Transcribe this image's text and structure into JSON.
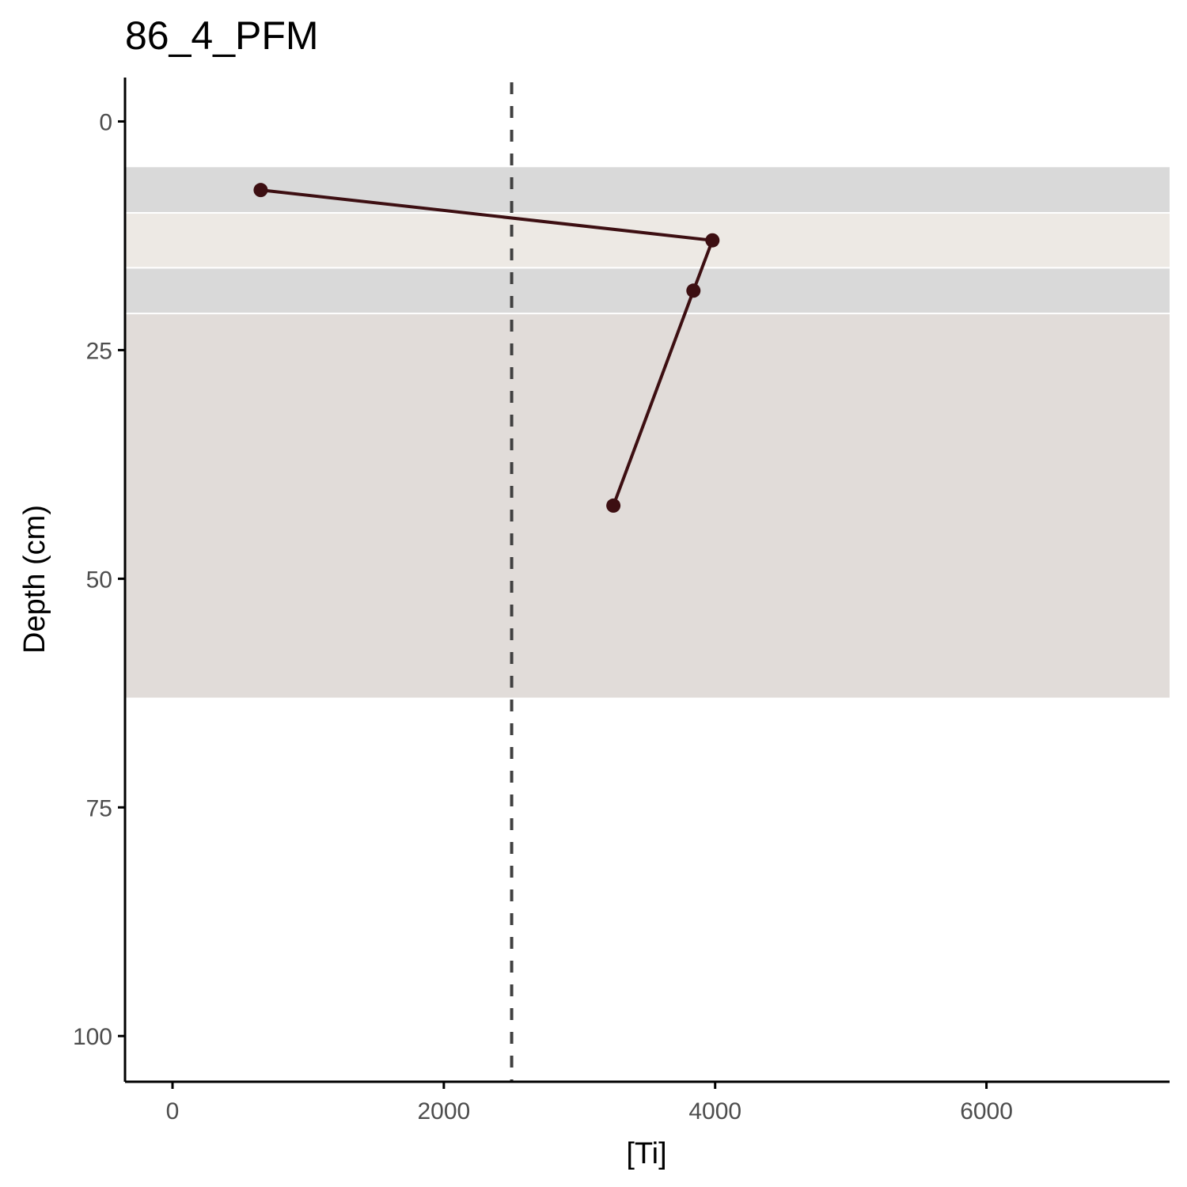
{
  "chart_data": {
    "type": "line",
    "title": "86_4_PFM",
    "xlabel": "[Ti]",
    "ylabel": "Depth (cm)",
    "xlim": [
      -350,
      7350
    ],
    "ylim": [
      -4.8,
      105
    ],
    "y_reversed": true,
    "x_ticks": [
      0,
      2000,
      4000,
      6000
    ],
    "x_tick_labels": [
      "0",
      "2000",
      "4000",
      "6000"
    ],
    "y_ticks": [
      0,
      25,
      50,
      75,
      100
    ],
    "y_tick_labels": [
      "0",
      "25",
      "50",
      "75",
      "100"
    ],
    "grid": false,
    "legend": "none",
    "reference_line": {
      "x": 2500,
      "style": "dashed",
      "color": "#404040"
    },
    "bands": [
      {
        "from": 5,
        "to": 10,
        "color": "#d9d9d9"
      },
      {
        "from": 10,
        "to": 16,
        "color": "#ede9e4"
      },
      {
        "from": 16,
        "to": 21,
        "color": "#d9d9d9"
      },
      {
        "from": 21,
        "to": 63,
        "color": "#e1dcd9"
      }
    ],
    "series": [
      {
        "color": "#3d0f12",
        "points": [
          {
            "x": 650,
            "y": 7.5
          },
          {
            "x": 3980,
            "y": 13
          },
          {
            "x": 3840,
            "y": 18.5
          },
          {
            "x": 3250,
            "y": 42
          }
        ]
      }
    ]
  }
}
